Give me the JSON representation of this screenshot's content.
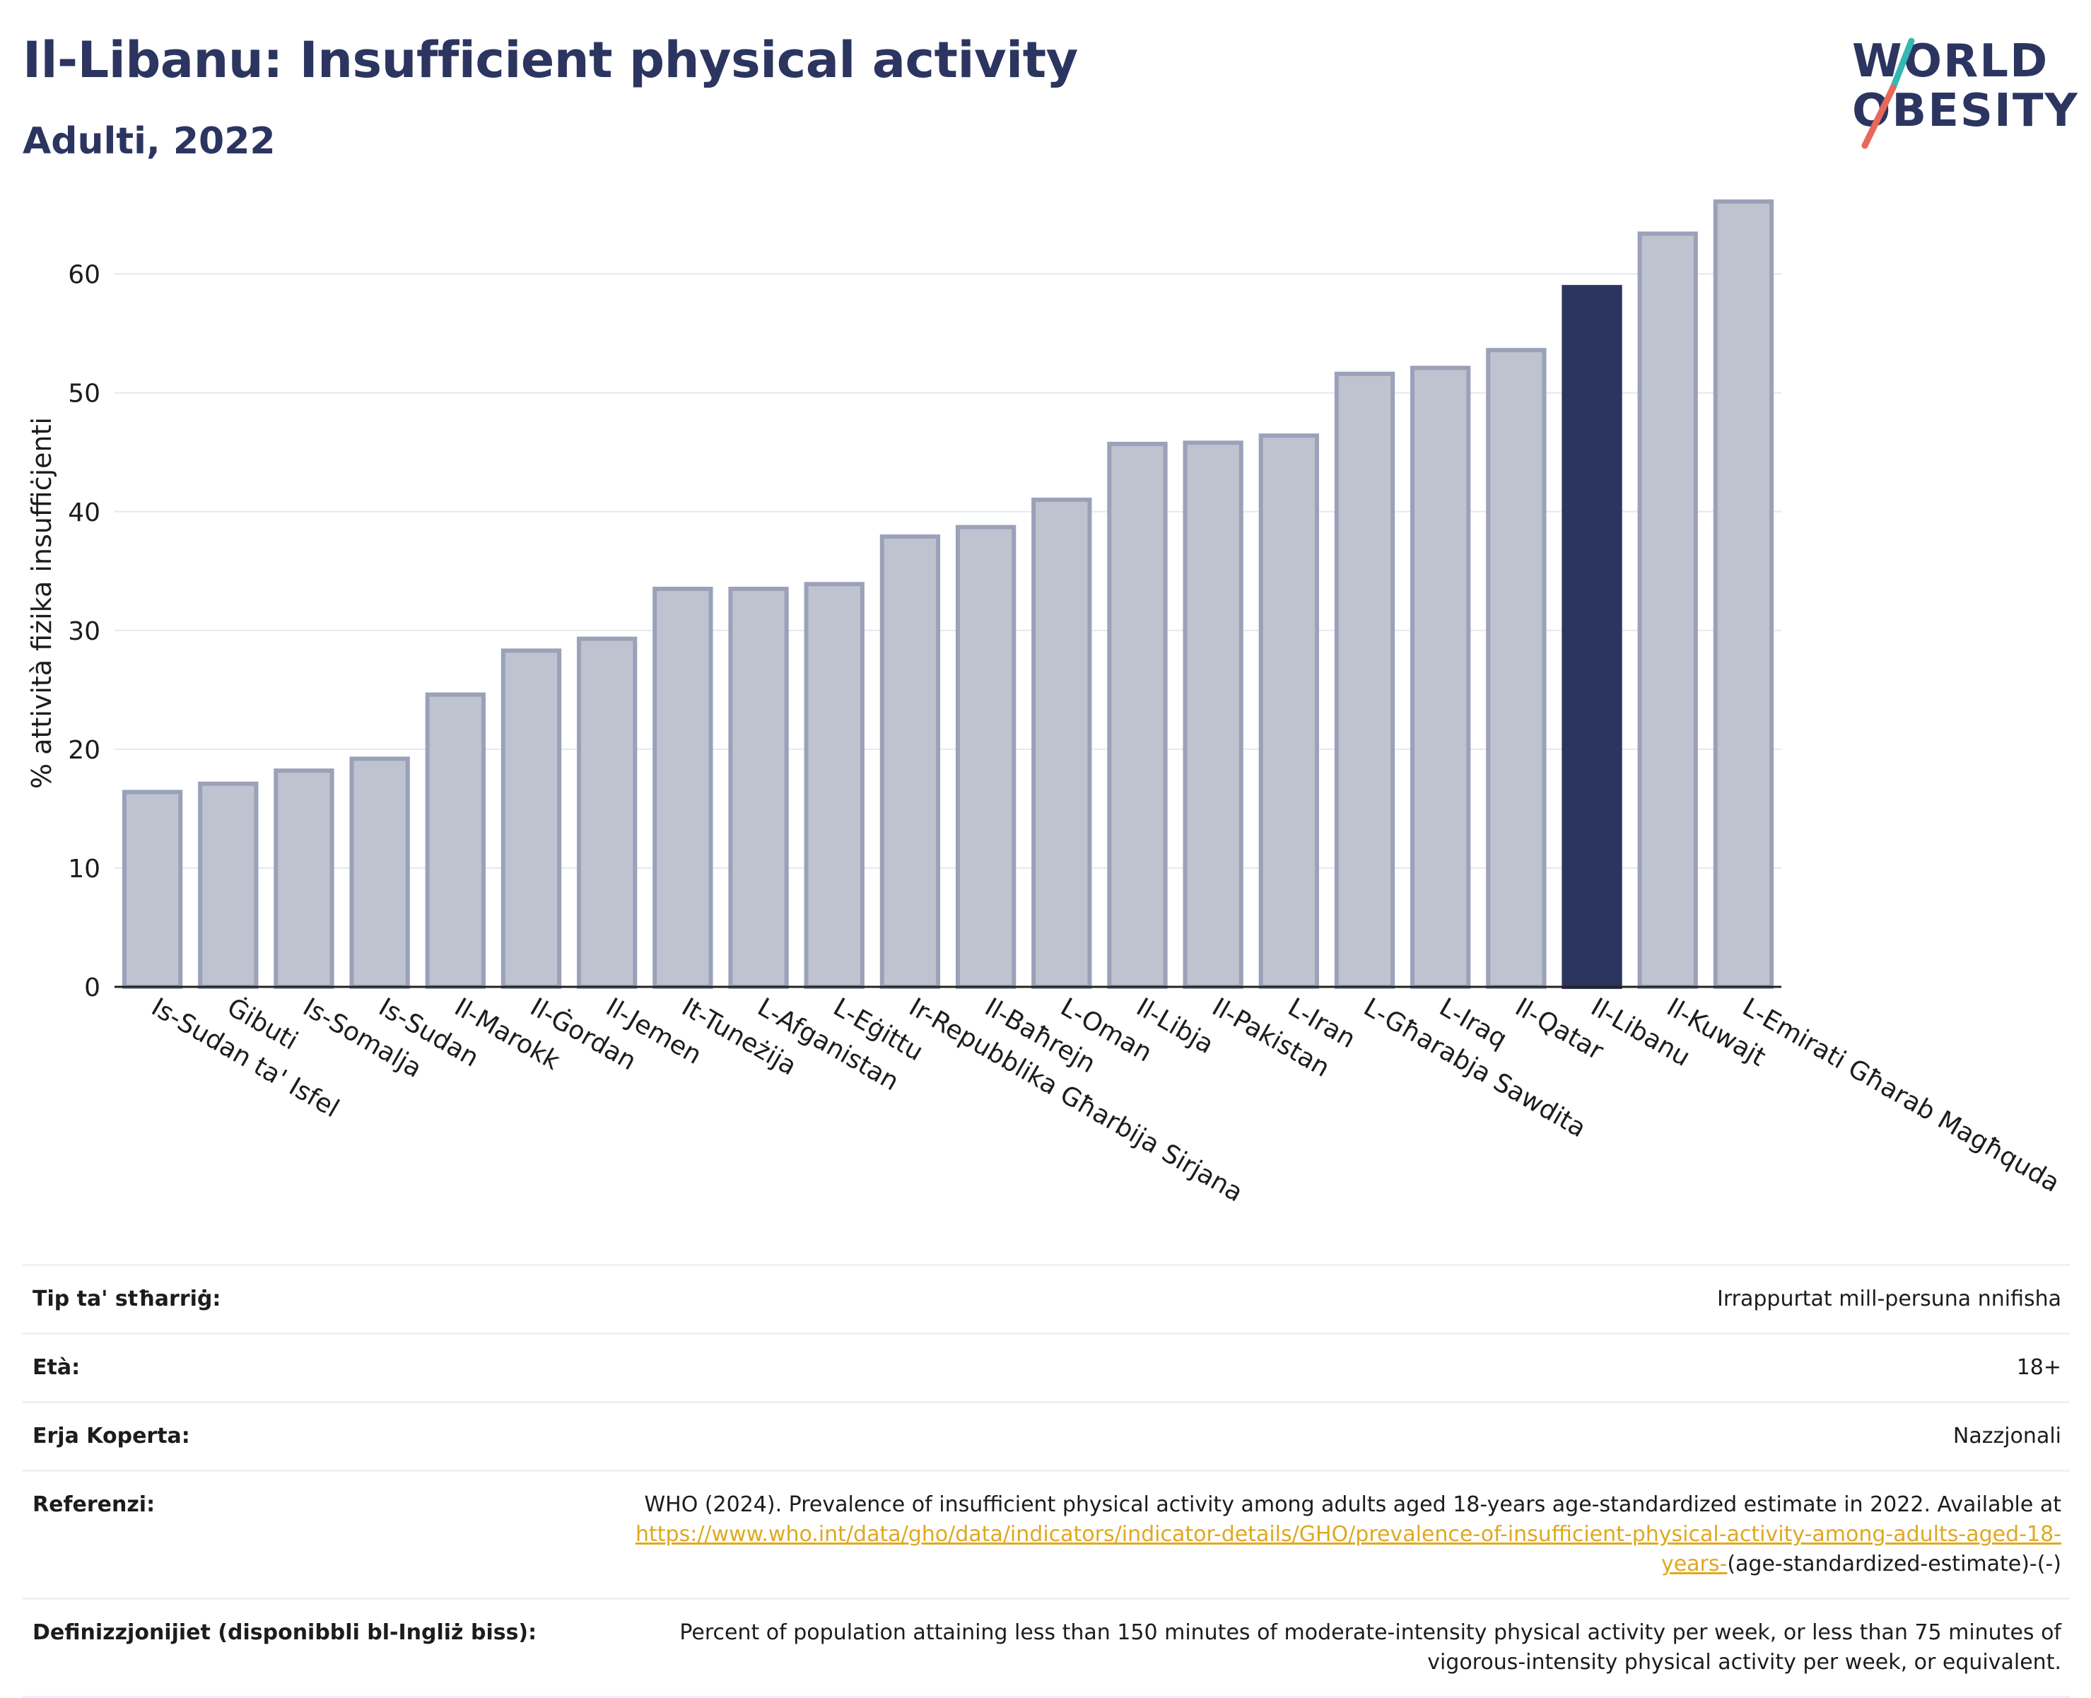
{
  "header": {
    "title": "Il-Libanu: Insufficient physical activity",
    "subtitle": "Adulti, 2022"
  },
  "logo": {
    "line1": "WORLD",
    "line2": "OBESITY",
    "colors": {
      "text": "#2b3560",
      "slash_red": "#e8685a",
      "slash_teal": "#35b7b4"
    }
  },
  "chart_data": {
    "type": "bar",
    "title": "Il-Libanu: Insufficient physical activity",
    "subtitle": "Adulti, 2022",
    "ylabel": "% attività fiżika insuffiċjenti",
    "xlabel": "",
    "ylim": [
      0,
      67
    ],
    "yticks": [
      0,
      10,
      20,
      30,
      40,
      50,
      60
    ],
    "grid": true,
    "highlight_category": "Il-Libanu",
    "colors": {
      "bar": "#bfc3d0",
      "bar_border": "#9aa1b8",
      "highlight": "#2b3560"
    },
    "categories": [
      "Is-Sudan ta' Isfel",
      "Ġibuti",
      "Is-Somalja",
      "Is-Sudan",
      "Il-Marokk",
      "Il-Ġordan",
      "Il-Jemen",
      "It-Tuneżija",
      "L-Afganistan",
      "L-Eġittu",
      "Ir-Repubblika Għarbija Sirjana",
      "Il-Baħrejn",
      "L-Oman",
      "Il-Libja",
      "Il-Pakistan",
      "L-Iran",
      "L-Għarabja Sawdita",
      "L-Iraq",
      "Il-Qatar",
      "Il-Libanu",
      "Il-Kuwajt",
      "L-Emirati Għarab Magħquda"
    ],
    "values": [
      16.4,
      17.1,
      18.2,
      19.2,
      24.6,
      28.3,
      29.3,
      33.5,
      33.5,
      33.9,
      37.9,
      38.7,
      41.0,
      45.7,
      45.8,
      46.4,
      51.6,
      52.1,
      53.6,
      58.9,
      63.4,
      66.1
    ]
  },
  "meta": [
    {
      "label": "Tip ta' stħarriġ:",
      "value": "Irrappurtat mill-persuna nnifisha"
    },
    {
      "label": "Età:",
      "value": "18+"
    },
    {
      "label": "Erja Koperta:",
      "value": "Nazzjonali"
    },
    {
      "label": "Referenzi:",
      "value_pre": "WHO (2024). Prevalence of insufficient physical activity among adults aged 18-years age-standardized estimate in 2022. Available at",
      "link": "https://www.who.int/data/gho/data/indicators/indicator-details/GHO/prevalence-of-insufficient-physical-activity-among-adults-aged-18-years-",
      "value_post": "(age-standardized-estimate)-(-)"
    },
    {
      "label": "Definizzjonijiet (disponibbli bl-Ingliż biss):",
      "value": "Percent of population attaining less than 150 minutes of moderate-intensity physical activity per week, or less than 75 minutes of vigorous-intensity physical activity per week, or equivalent."
    }
  ]
}
